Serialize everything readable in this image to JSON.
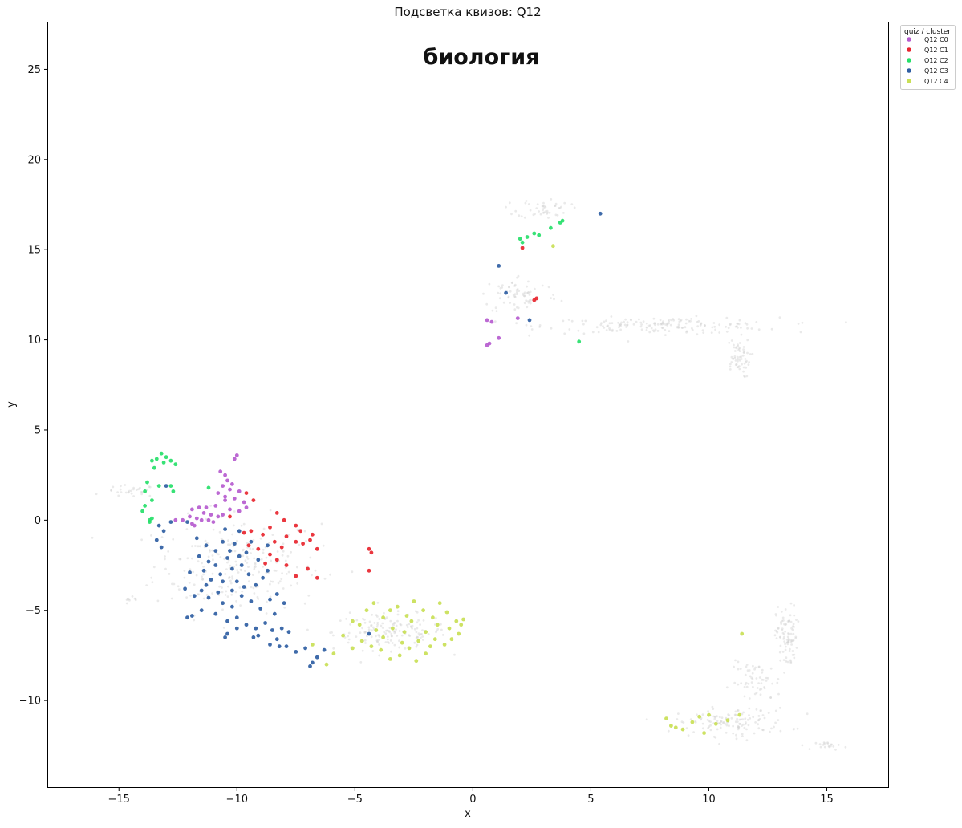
{
  "chart_data": {
    "type": "scatter",
    "title": "Подсветка квизов: Q12",
    "xlabel": "x",
    "ylabel": "y",
    "xlim": [
      -18.0,
      17.6
    ],
    "ylim": [
      -14.8,
      27.6
    ],
    "xticks": [
      -15,
      -10,
      -5,
      0,
      5,
      10,
      15
    ],
    "xtick_labels": [
      "−15",
      "−10",
      "−5",
      "0",
      "5",
      "10",
      "15"
    ],
    "yticks": [
      -10,
      -5,
      0,
      5,
      10,
      15,
      20,
      25
    ],
    "ytick_labels": [
      "−10",
      "−5",
      "0",
      "5",
      "10",
      "15",
      "20",
      "25"
    ],
    "grid": false,
    "annotation": "биология",
    "legend": {
      "title": "quiz / cluster",
      "placement": "outside top-right"
    },
    "background_points": {
      "color": "#d0d0d0",
      "regions": [
        {
          "cx": -10.0,
          "cy": -2.5,
          "sx": 3.2,
          "sy": 2.4,
          "n": 240
        },
        {
          "cx": -3.5,
          "cy": -6.2,
          "sx": 2.2,
          "sy": 0.9,
          "n": 160
        },
        {
          "cx": -14.5,
          "cy": 1.6,
          "sx": 1.0,
          "sy": 0.3,
          "n": 30
        },
        {
          "cx": -14.5,
          "cy": -4.5,
          "sx": 0.4,
          "sy": 0.2,
          "n": 10
        },
        {
          "cx": 8.0,
          "cy": 10.8,
          "sx": 4.5,
          "sy": 0.4,
          "n": 170
        },
        {
          "cx": 2.0,
          "cy": 12.5,
          "sx": 1.5,
          "sy": 1.0,
          "n": 70
        },
        {
          "cx": 3.0,
          "cy": 17.3,
          "sx": 1.0,
          "sy": 0.5,
          "n": 45
        },
        {
          "cx": 11.2,
          "cy": 9.0,
          "sx": 0.5,
          "sy": 1.0,
          "n": 60
        },
        {
          "cx": 13.3,
          "cy": -6.5,
          "sx": 0.4,
          "sy": 1.6,
          "n": 90
        },
        {
          "cx": 11.0,
          "cy": -11.2,
          "sx": 2.2,
          "sy": 0.7,
          "n": 130
        },
        {
          "cx": 12.0,
          "cy": -9.0,
          "sx": 1.0,
          "sy": 1.0,
          "n": 60
        },
        {
          "cx": 15.2,
          "cy": -12.5,
          "sx": 0.6,
          "sy": 0.2,
          "n": 20
        }
      ]
    },
    "series": [
      {
        "name": "Q12 C0",
        "color": "#b65ccf",
        "points": [
          [
            -10.0,
            3.6
          ],
          [
            -10.1,
            3.4
          ],
          [
            -10.5,
            2.5
          ],
          [
            -10.4,
            2.2
          ],
          [
            -10.2,
            2.0
          ],
          [
            -10.6,
            1.9
          ],
          [
            -10.3,
            1.7
          ],
          [
            -9.9,
            1.6
          ],
          [
            -10.8,
            1.5
          ],
          [
            -10.5,
            1.3
          ],
          [
            -10.1,
            1.2
          ],
          [
            -9.7,
            1.0
          ],
          [
            -10.9,
            0.8
          ],
          [
            -11.3,
            0.7
          ],
          [
            -11.6,
            0.7
          ],
          [
            -11.9,
            0.6
          ],
          [
            -11.4,
            0.4
          ],
          [
            -11.1,
            0.3
          ],
          [
            -10.8,
            0.2
          ],
          [
            -11.7,
            0.1
          ],
          [
            -11.5,
            0.0
          ],
          [
            -11.2,
            0.0
          ],
          [
            -11.0,
            -0.1
          ],
          [
            -11.9,
            -0.2
          ],
          [
            -12.3,
            0.0
          ],
          [
            -12.6,
            0.0
          ],
          [
            -10.6,
            0.3
          ],
          [
            -10.3,
            0.6
          ],
          [
            -9.9,
            0.5
          ],
          [
            -9.6,
            0.7
          ],
          [
            -11.8,
            -0.3
          ],
          [
            -12.0,
            0.2
          ],
          [
            -10.5,
            1.1
          ],
          [
            -10.7,
            2.7
          ],
          [
            0.6,
            11.1
          ],
          [
            0.8,
            11.0
          ],
          [
            0.7,
            9.8
          ],
          [
            0.6,
            9.7
          ],
          [
            1.1,
            10.1
          ],
          [
            1.9,
            11.2
          ]
        ]
      },
      {
        "name": "Q12 C1",
        "color": "#e8262f",
        "points": [
          [
            -9.6,
            1.5
          ],
          [
            -9.3,
            1.1
          ],
          [
            -8.3,
            0.4
          ],
          [
            -8.0,
            0.0
          ],
          [
            -7.5,
            -0.3
          ],
          [
            -7.3,
            -0.6
          ],
          [
            -8.6,
            -0.4
          ],
          [
            -8.9,
            -0.8
          ],
          [
            -8.4,
            -1.2
          ],
          [
            -8.1,
            -1.5
          ],
          [
            -8.6,
            -1.9
          ],
          [
            -8.3,
            -2.2
          ],
          [
            -7.9,
            -2.5
          ],
          [
            -9.1,
            -1.6
          ],
          [
            -9.5,
            -1.4
          ],
          [
            -9.7,
            -0.7
          ],
          [
            -7.9,
            -0.9
          ],
          [
            -7.5,
            -1.2
          ],
          [
            -7.2,
            -1.3
          ],
          [
            -6.9,
            -1.1
          ],
          [
            -6.6,
            -1.6
          ],
          [
            -7.0,
            -2.7
          ],
          [
            -6.6,
            -3.2
          ],
          [
            -7.5,
            -3.1
          ],
          [
            -8.8,
            -2.4
          ],
          [
            -9.4,
            -0.6
          ],
          [
            -6.8,
            -0.8
          ],
          [
            -4.4,
            -1.6
          ],
          [
            -4.3,
            -1.8
          ],
          [
            -4.4,
            -2.8
          ],
          [
            2.6,
            12.2
          ],
          [
            2.7,
            12.3
          ],
          [
            2.1,
            15.1
          ],
          [
            -10.3,
            0.2
          ]
        ]
      },
      {
        "name": "Q12 C2",
        "color": "#27e06a",
        "points": [
          [
            -13.2,
            3.7
          ],
          [
            -13.0,
            3.5
          ],
          [
            -13.4,
            3.4
          ],
          [
            -13.6,
            3.3
          ],
          [
            -13.1,
            3.2
          ],
          [
            -12.8,
            3.3
          ],
          [
            -12.6,
            3.1
          ],
          [
            -13.5,
            2.9
          ],
          [
            -13.8,
            2.1
          ],
          [
            -13.9,
            1.6
          ],
          [
            -13.6,
            1.1
          ],
          [
            -13.9,
            0.8
          ],
          [
            -14.0,
            0.5
          ],
          [
            -13.6,
            0.1
          ],
          [
            -13.7,
            0.0
          ],
          [
            -12.8,
            1.9
          ],
          [
            -12.7,
            1.6
          ],
          [
            -13.3,
            1.9
          ],
          [
            -11.2,
            1.8
          ],
          [
            2.0,
            15.6
          ],
          [
            2.1,
            15.4
          ],
          [
            2.3,
            15.7
          ],
          [
            2.6,
            15.9
          ],
          [
            2.8,
            15.8
          ],
          [
            3.3,
            16.2
          ],
          [
            3.7,
            16.5
          ],
          [
            3.8,
            16.6
          ],
          [
            4.5,
            9.9
          ],
          [
            -13.7,
            -0.1
          ]
        ]
      },
      {
        "name": "Q12 C3",
        "color": "#2f5ea3",
        "points": [
          [
            -13.0,
            1.9
          ],
          [
            -12.1,
            -0.1
          ],
          [
            -12.8,
            -0.1
          ],
          [
            -13.1,
            -0.6
          ],
          [
            -13.3,
            -0.3
          ],
          [
            -13.2,
            -1.5
          ],
          [
            -13.4,
            -1.1
          ],
          [
            -11.7,
            -1.0
          ],
          [
            -11.3,
            -1.4
          ],
          [
            -11.6,
            -2.0
          ],
          [
            -11.2,
            -2.3
          ],
          [
            -10.9,
            -1.7
          ],
          [
            -10.6,
            -1.2
          ],
          [
            -10.4,
            -2.1
          ],
          [
            -10.2,
            -2.7
          ],
          [
            -10.7,
            -3.0
          ],
          [
            -11.1,
            -3.3
          ],
          [
            -11.4,
            -2.8
          ],
          [
            -10.0,
            -3.4
          ],
          [
            -9.8,
            -2.5
          ],
          [
            -9.5,
            -3.0
          ],
          [
            -9.2,
            -3.6
          ],
          [
            -8.9,
            -3.2
          ],
          [
            -8.7,
            -2.8
          ],
          [
            -9.1,
            -2.2
          ],
          [
            -9.6,
            -1.8
          ],
          [
            -10.1,
            -1.3
          ],
          [
            -10.5,
            -0.5
          ],
          [
            -9.9,
            -0.6
          ],
          [
            -10.8,
            -4.0
          ],
          [
            -11.2,
            -4.3
          ],
          [
            -10.6,
            -4.6
          ],
          [
            -10.2,
            -4.8
          ],
          [
            -9.8,
            -4.2
          ],
          [
            -9.4,
            -4.5
          ],
          [
            -9.0,
            -4.9
          ],
          [
            -8.6,
            -4.4
          ],
          [
            -8.3,
            -4.1
          ],
          [
            -11.8,
            -4.2
          ],
          [
            -12.2,
            -3.8
          ],
          [
            -11.5,
            -3.9
          ],
          [
            -10.9,
            -5.2
          ],
          [
            -10.4,
            -5.6
          ],
          [
            -10.0,
            -5.4
          ],
          [
            -9.6,
            -5.8
          ],
          [
            -9.2,
            -6.0
          ],
          [
            -8.8,
            -5.7
          ],
          [
            -8.5,
            -6.1
          ],
          [
            -8.1,
            -6.0
          ],
          [
            -7.8,
            -6.2
          ],
          [
            -8.3,
            -6.6
          ],
          [
            -8.6,
            -6.9
          ],
          [
            -7.9,
            -7.0
          ],
          [
            -7.5,
            -7.3
          ],
          [
            -7.1,
            -7.1
          ],
          [
            -6.8,
            -7.9
          ],
          [
            -6.9,
            -8.1
          ],
          [
            -6.6,
            -7.6
          ],
          [
            -6.3,
            -7.2
          ],
          [
            -10.4,
            -6.3
          ],
          [
            -10.5,
            -6.5
          ],
          [
            -9.3,
            -6.5
          ],
          [
            -9.1,
            -6.4
          ],
          [
            -11.9,
            -5.3
          ],
          [
            -12.1,
            -5.4
          ],
          [
            -11.5,
            -5.0
          ],
          [
            -10.2,
            -3.9
          ],
          [
            -9.7,
            -3.7
          ],
          [
            -10.3,
            -1.7
          ],
          [
            -9.9,
            -2.0
          ],
          [
            -11.3,
            -3.6
          ],
          [
            -12.0,
            -2.9
          ],
          [
            -8.7,
            -1.4
          ],
          [
            -9.4,
            -1.2
          ],
          [
            -8.4,
            -5.2
          ],
          [
            -8.0,
            -4.6
          ],
          [
            -10.6,
            -3.4
          ],
          [
            -10.9,
            -2.5
          ],
          [
            -4.4,
            -6.3
          ],
          [
            1.1,
            14.1
          ],
          [
            1.4,
            12.6
          ],
          [
            2.4,
            11.1
          ],
          [
            5.4,
            17.0
          ],
          [
            -8.2,
            -7.0
          ],
          [
            -10.0,
            -6.0
          ]
        ]
      },
      {
        "name": "Q12 C4",
        "color": "#c9df56",
        "points": [
          [
            -5.1,
            -5.6
          ],
          [
            -4.8,
            -5.8
          ],
          [
            -4.5,
            -5.0
          ],
          [
            -4.2,
            -4.6
          ],
          [
            -3.8,
            -5.4
          ],
          [
            -3.5,
            -5.0
          ],
          [
            -3.2,
            -4.8
          ],
          [
            -2.8,
            -5.3
          ],
          [
            -2.5,
            -4.5
          ],
          [
            -2.1,
            -5.0
          ],
          [
            -1.7,
            -5.4
          ],
          [
            -1.4,
            -4.6
          ],
          [
            -1.1,
            -5.1
          ],
          [
            -0.7,
            -5.6
          ],
          [
            -0.5,
            -5.8
          ],
          [
            -0.6,
            -6.3
          ],
          [
            -0.9,
            -6.6
          ],
          [
            -1.2,
            -6.9
          ],
          [
            -1.6,
            -6.6
          ],
          [
            -2.0,
            -6.2
          ],
          [
            -2.3,
            -6.7
          ],
          [
            -2.7,
            -7.1
          ],
          [
            -3.1,
            -7.5
          ],
          [
            -3.5,
            -7.7
          ],
          [
            -3.9,
            -7.2
          ],
          [
            -4.3,
            -7.0
          ],
          [
            -4.7,
            -6.7
          ],
          [
            -5.1,
            -7.1
          ],
          [
            -5.5,
            -6.4
          ],
          [
            -5.9,
            -7.4
          ],
          [
            -6.2,
            -8.0
          ],
          [
            -6.8,
            -6.9
          ],
          [
            -2.4,
            -7.8
          ],
          [
            -2.0,
            -7.4
          ],
          [
            -1.8,
            -7.0
          ],
          [
            -2.9,
            -6.2
          ],
          [
            -3.4,
            -6.0
          ],
          [
            -3.8,
            -6.5
          ],
          [
            -4.1,
            -6.1
          ],
          [
            -1.0,
            -6.0
          ],
          [
            -0.4,
            -5.5
          ],
          [
            -1.5,
            -5.8
          ],
          [
            -2.6,
            -5.6
          ],
          [
            -3.0,
            -6.8
          ],
          [
            8.2,
            -11.0
          ],
          [
            8.4,
            -11.4
          ],
          [
            8.6,
            -11.5
          ],
          [
            8.9,
            -11.6
          ],
          [
            9.3,
            -11.2
          ],
          [
            9.6,
            -10.9
          ],
          [
            9.8,
            -11.8
          ],
          [
            10.0,
            -10.8
          ],
          [
            10.3,
            -11.3
          ],
          [
            10.8,
            -11.1
          ],
          [
            11.3,
            -10.8
          ],
          [
            11.4,
            -6.3
          ],
          [
            3.4,
            15.2
          ]
        ]
      }
    ]
  }
}
